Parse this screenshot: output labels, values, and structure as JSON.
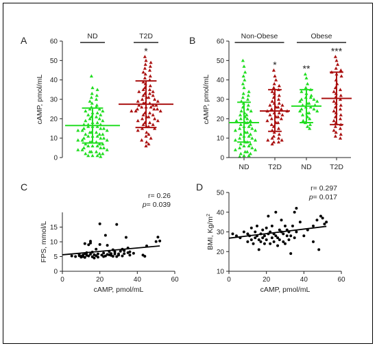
{
  "chart_data": [
    {
      "panel": "A",
      "type": "scatter",
      "ylabel": "cAMP, pmol/mL",
      "ylim": [
        0,
        60
      ],
      "yticks": [
        0,
        10,
        20,
        30,
        40,
        50,
        60
      ],
      "categories": [
        "ND",
        "T2D"
      ],
      "bracket_labels": [
        "ND",
        "T2D"
      ],
      "colors": [
        "#22dd22",
        "#aa1111"
      ],
      "significance": [
        "",
        "*"
      ],
      "summary": [
        {
          "mean": 16.5,
          "sd_low": 7.5,
          "sd_high": 25.5
        },
        {
          "mean": 27.5,
          "sd_low": 15.5,
          "sd_high": 39.5
        }
      ],
      "points": [
        [
          42,
          36,
          35,
          33,
          32,
          31,
          30,
          29,
          28,
          27,
          26,
          26,
          25,
          25,
          24,
          24,
          23,
          23,
          22,
          22,
          21,
          21,
          20,
          20,
          19,
          19,
          18,
          18,
          17,
          17,
          17,
          16,
          16,
          16,
          15,
          15,
          15,
          14,
          14,
          14,
          13,
          13,
          13,
          12,
          12,
          12,
          11,
          11,
          11,
          10,
          10,
          10,
          9,
          9,
          9,
          8,
          8,
          8,
          7,
          7,
          7,
          6,
          6,
          6,
          5,
          5,
          5,
          4,
          4,
          4,
          3,
          3,
          3,
          2,
          2,
          2,
          1,
          1,
          1,
          0.5
        ],
        [
          52,
          50,
          49,
          48,
          47,
          46,
          45,
          44,
          43,
          42,
          41,
          40,
          39,
          38,
          37,
          36,
          35,
          35,
          34,
          34,
          33,
          33,
          32,
          32,
          31,
          31,
          30,
          30,
          29,
          29,
          28,
          28,
          28,
          27,
          27,
          27,
          26,
          26,
          26,
          25,
          25,
          25,
          24,
          24,
          24,
          23,
          23,
          22,
          22,
          21,
          21,
          20,
          20,
          19,
          19,
          18,
          18,
          17,
          17,
          16,
          16,
          15,
          15,
          14,
          13,
          12,
          11,
          10,
          9,
          8,
          7,
          6
        ]
      ]
    },
    {
      "panel": "B",
      "type": "scatter",
      "ylabel": "cAMP, pmol/mL",
      "ylim": [
        0,
        60
      ],
      "yticks": [
        0,
        10,
        20,
        30,
        40,
        50,
        60
      ],
      "categories": [
        "ND",
        "T2D",
        "ND",
        "T2D"
      ],
      "groups": [
        "Non-Obese",
        "Obese"
      ],
      "colors": [
        "#22dd22",
        "#aa1111",
        "#22dd22",
        "#aa1111"
      ],
      "significance": [
        "",
        "*",
        "**",
        "***"
      ],
      "summary": [
        {
          "mean": 18,
          "sd_low": 8,
          "sd_high": 28.5
        },
        {
          "mean": 24,
          "sd_low": 13.5,
          "sd_high": 35
        },
        {
          "mean": 26.5,
          "sd_low": 18,
          "sd_high": 35
        },
        {
          "mean": 30.5,
          "sd_low": 17,
          "sd_high": 44
        }
      ],
      "points": [
        [
          50,
          47,
          44,
          42,
          40,
          38,
          36,
          34,
          33,
          32,
          31,
          30,
          29,
          28,
          27,
          26,
          25,
          24,
          24,
          23,
          22,
          22,
          21,
          20,
          20,
          19,
          19,
          18,
          18,
          17,
          17,
          16,
          16,
          15,
          15,
          14,
          14,
          13,
          13,
          12,
          12,
          11,
          11,
          10,
          10,
          9,
          9,
          8,
          8,
          7,
          7,
          6,
          6,
          5,
          5,
          4,
          4,
          3,
          3,
          2,
          2,
          1,
          1,
          0.5
        ],
        [
          45,
          42,
          40,
          38,
          37,
          36,
          35,
          34,
          33,
          32,
          31,
          30,
          29,
          28,
          28,
          27,
          27,
          26,
          26,
          25,
          25,
          24,
          24,
          23,
          23,
          22,
          22,
          21,
          21,
          20,
          20,
          19,
          18,
          18,
          17,
          16,
          15,
          14,
          13,
          12,
          11,
          10,
          10,
          9,
          9,
          8,
          8,
          7
        ],
        [
          43,
          41,
          38,
          36,
          35,
          34,
          33,
          32,
          31,
          31,
          30,
          30,
          29,
          29,
          28,
          28,
          27,
          27,
          26,
          26,
          25,
          25,
          24,
          24,
          23,
          23,
          22,
          21,
          20,
          19,
          18,
          17,
          16,
          15
        ],
        [
          52,
          50,
          48,
          46,
          45,
          44,
          43,
          42,
          40,
          38,
          36,
          35,
          34,
          33,
          32,
          31,
          30,
          29,
          28,
          27,
          26,
          25,
          24,
          23,
          22,
          21,
          20,
          19,
          18,
          17,
          16,
          15,
          14,
          13,
          12,
          11,
          10
        ]
      ]
    },
    {
      "panel": "C",
      "type": "scatter",
      "xlabel": "cAMP, pmol/mL",
      "ylabel": "FPS, mmol/L",
      "xlim": [
        0,
        60
      ],
      "ylim": [
        0,
        20
      ],
      "xticks": [
        0,
        20,
        40,
        60
      ],
      "yticks": [
        0,
        5,
        10,
        15
      ],
      "stats": {
        "r": "r= 0.26",
        "p_label": "p",
        "p_value": "= 0.039"
      },
      "trendline": {
        "x": [
          0,
          52
        ],
        "y": [
          5.6,
          8.6
        ]
      },
      "points": [
        [
          5,
          5.2
        ],
        [
          7,
          5.0
        ],
        [
          9,
          5.3
        ],
        [
          9,
          5.8
        ],
        [
          10,
          5.1
        ],
        [
          10,
          4.8
        ],
        [
          11,
          5.5
        ],
        [
          11,
          5.0
        ],
        [
          12,
          6.0
        ],
        [
          12,
          4.7
        ],
        [
          12,
          9.4
        ],
        [
          13,
          5.4
        ],
        [
          13,
          6.3
        ],
        [
          14,
          5.2
        ],
        [
          14,
          9.0
        ],
        [
          15,
          9.6
        ],
        [
          15,
          10.2
        ],
        [
          15,
          5.8
        ],
        [
          16,
          4.9
        ],
        [
          16,
          6.5
        ],
        [
          17,
          5.6
        ],
        [
          17,
          4.5
        ],
        [
          18,
          7.5
        ],
        [
          18,
          5.3
        ],
        [
          19,
          5.9
        ],
        [
          19,
          4.8
        ],
        [
          20,
          16.1
        ],
        [
          20,
          9.1
        ],
        [
          21,
          5.5
        ],
        [
          22,
          6.2
        ],
        [
          22,
          5.0
        ],
        [
          23,
          5.2
        ],
        [
          23,
          12.2
        ],
        [
          24,
          8.8
        ],
        [
          24,
          5.7
        ],
        [
          25,
          5.6
        ],
        [
          25,
          6.7
        ],
        [
          26,
          5.4
        ],
        [
          26,
          6.0
        ],
        [
          27,
          5.1
        ],
        [
          27,
          7.3
        ],
        [
          28,
          5.9
        ],
        [
          28,
          6.6
        ],
        [
          29,
          5.0
        ],
        [
          29,
          15.9
        ],
        [
          30,
          5.5
        ],
        [
          30,
          5.9
        ],
        [
          31,
          6.8
        ],
        [
          32,
          5.2
        ],
        [
          32,
          7.5
        ],
        [
          33,
          7.0
        ],
        [
          33,
          6.0
        ],
        [
          34,
          11.5
        ],
        [
          35,
          6.3
        ],
        [
          35,
          7.9
        ],
        [
          36,
          5.5
        ],
        [
          36,
          6.6
        ],
        [
          38,
          6.1
        ],
        [
          43,
          5.5
        ],
        [
          44,
          5.1
        ],
        [
          45,
          8.6
        ],
        [
          50,
          10.1
        ],
        [
          51,
          11.6
        ],
        [
          52,
          10.3
        ]
      ]
    },
    {
      "panel": "D",
      "type": "scatter",
      "xlabel": "cAMP, pmol/mL",
      "ylabel": "BMI, Kg/m",
      "ylabel_superscript": "2",
      "xlim": [
        0,
        60
      ],
      "ylim": [
        10,
        50
      ],
      "xticks": [
        0,
        20,
        40,
        60
      ],
      "yticks": [
        10,
        20,
        30,
        40,
        50
      ],
      "stats": {
        "r": "r= 0.297",
        "p_label": "p",
        "p_value": "= 0.017"
      },
      "trendline": {
        "x": [
          0,
          52
        ],
        "y": [
          26.8,
          32.8
        ]
      },
      "points": [
        [
          2,
          29
        ],
        [
          4,
          28
        ],
        [
          6,
          27
        ],
        [
          8,
          30
        ],
        [
          10,
          25
        ],
        [
          10,
          29
        ],
        [
          11,
          28
        ],
        [
          12,
          32
        ],
        [
          12,
          26
        ],
        [
          13,
          24
        ],
        [
          14,
          27
        ],
        [
          14,
          30
        ],
        [
          15,
          33
        ],
        [
          15,
          28
        ],
        [
          16,
          26
        ],
        [
          16,
          21
        ],
        [
          17,
          29
        ],
        [
          17,
          25
        ],
        [
          18,
          31
        ],
        [
          18,
          27
        ],
        [
          19,
          24
        ],
        [
          19,
          28
        ],
        [
          20,
          32
        ],
        [
          20,
          26
        ],
        [
          21,
          38
        ],
        [
          21,
          29
        ],
        [
          22,
          24
        ],
        [
          22,
          30
        ],
        [
          23,
          27
        ],
        [
          23,
          33
        ],
        [
          24,
          25
        ],
        [
          24,
          29
        ],
        [
          25,
          40
        ],
        [
          25,
          28
        ],
        [
          26,
          27
        ],
        [
          26,
          23
        ],
        [
          27,
          31
        ],
        [
          27,
          26
        ],
        [
          28,
          36
        ],
        [
          28,
          30
        ],
        [
          29,
          25
        ],
        [
          29,
          29
        ],
        [
          30,
          24
        ],
        [
          30,
          33
        ],
        [
          31,
          28
        ],
        [
          31,
          31
        ],
        [
          32,
          26
        ],
        [
          32,
          30
        ],
        [
          33,
          19
        ],
        [
          33,
          28
        ],
        [
          34,
          33
        ],
        [
          35,
          27
        ],
        [
          35,
          40
        ],
        [
          36,
          42
        ],
        [
          36,
          30
        ],
        [
          38,
          35
        ],
        [
          40,
          28
        ],
        [
          42,
          31
        ],
        [
          45,
          25
        ],
        [
          45,
          33
        ],
        [
          47,
          36
        ],
        [
          48,
          21
        ],
        [
          49,
          38
        ],
        [
          50,
          37
        ],
        [
          51,
          34
        ],
        [
          52,
          35
        ]
      ]
    }
  ]
}
